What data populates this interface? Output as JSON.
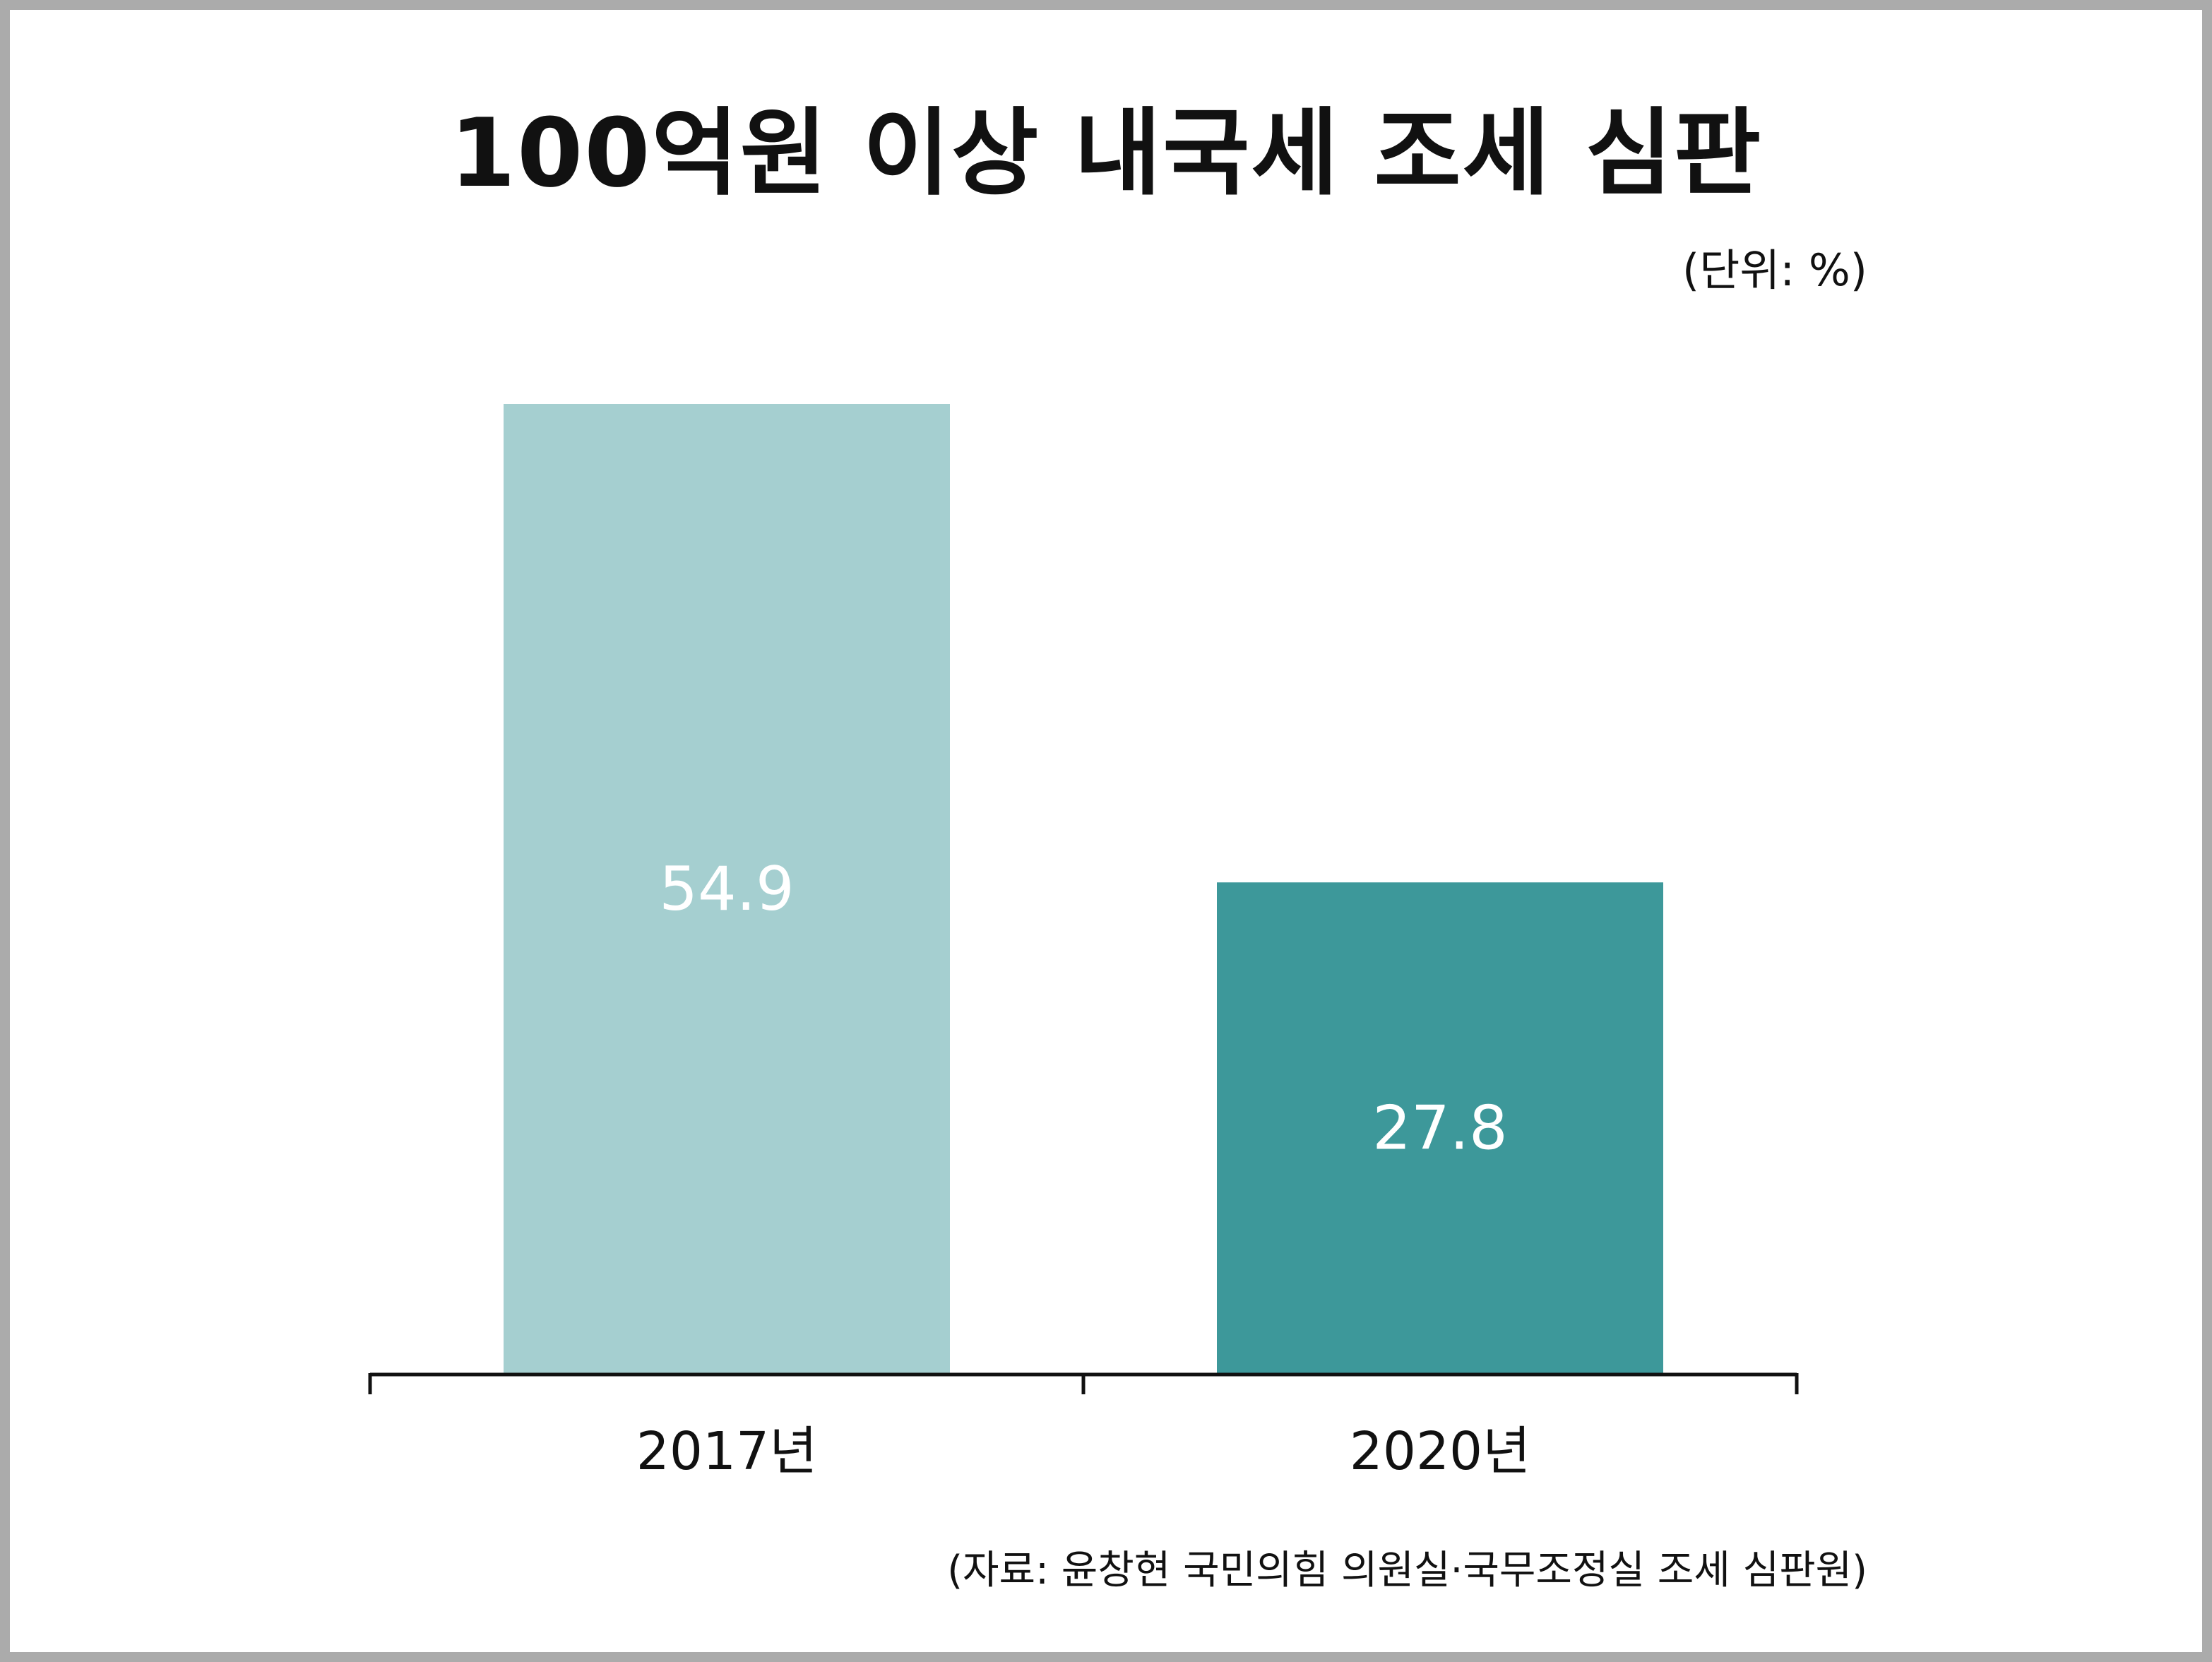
{
  "chart_data": {
    "type": "bar",
    "title": "100억원 이상 내국세 조세 심판",
    "unit_label": "(단위: %)",
    "categories": [
      "2017년",
      "2020년"
    ],
    "values": [
      54.9,
      27.8
    ],
    "value_labels": [
      "54.9",
      "27.8"
    ],
    "colors": [
      "#a5cfd0",
      "#3d989a"
    ],
    "ylim": [
      0,
      54.9
    ],
    "grid": false,
    "legend": "none",
    "source": "(자료: 윤창현 국민의힘 의원실·국무조정실 조세 심판원)"
  }
}
